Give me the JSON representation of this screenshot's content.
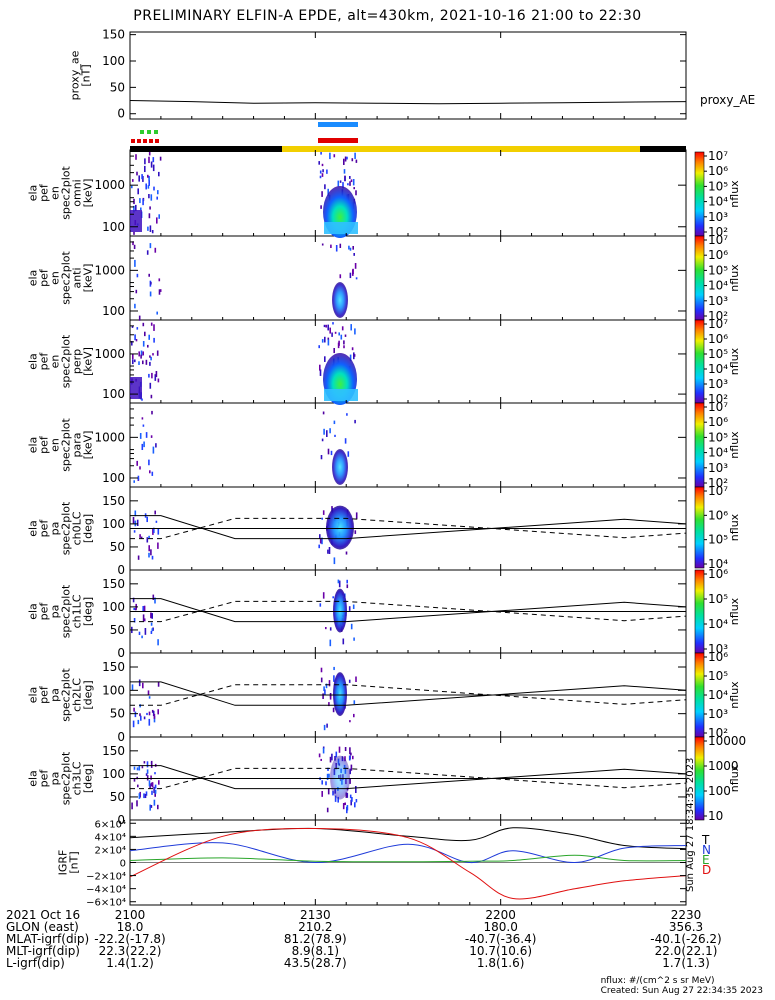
{
  "title": "PRELIMINARY ELFIN-A EPDE, alt=430km, 2021-10-16 21:00 to 22:30",
  "colors": {
    "frame": "#000000",
    "orbit_bar_sunlit": "#f2cf00",
    "orbit_bar_dark": "#000000",
    "science_zone_blue": "#1a8cff",
    "science_zone_red": "#e00000",
    "marker_green": "#2ecc2e",
    "marker_red": "#e00000",
    "bfield_T": "#000000",
    "bfield_N": "#1f3bd9",
    "bfield_E": "#2aa52a",
    "bfield_D": "#e01010"
  },
  "panels": {
    "proxy_ae": {
      "ylabel": [
        "proxy_ae",
        "[nT]"
      ],
      "yticks": [
        "150",
        "100",
        "50",
        "0"
      ],
      "legend": "proxy_AE"
    },
    "spec": [
      {
        "ylabel": [
          "ela",
          "pef",
          "en",
          "spec2plot",
          "omni",
          "[keV]"
        ],
        "yticks": [
          "1000",
          "100"
        ]
      },
      {
        "ylabel": [
          "ela",
          "pef",
          "en",
          "spec2plot",
          "anti",
          "[keV]"
        ],
        "yticks": [
          "1000",
          "100"
        ]
      },
      {
        "ylabel": [
          "ela",
          "pef",
          "en",
          "spec2plot",
          "perp",
          "[keV]"
        ],
        "yticks": [
          "1000",
          "100"
        ]
      },
      {
        "ylabel": [
          "ela",
          "pef",
          "en",
          "spec2plot",
          "para",
          "[keV]"
        ],
        "yticks": [
          "1000",
          "100"
        ]
      }
    ],
    "pa": [
      {
        "ylabel": [
          "ela",
          "pef",
          "pa",
          "spec2plot",
          "ch0LC",
          "[deg]"
        ],
        "yticks": [
          "150",
          "100",
          "50",
          "0"
        ]
      },
      {
        "ylabel": [
          "ela",
          "pef",
          "pa",
          "spec2plot",
          "ch1LC",
          "[deg]"
        ],
        "yticks": [
          "150",
          "100",
          "50",
          "0"
        ]
      },
      {
        "ylabel": [
          "ela",
          "pef",
          "pa",
          "spec2plot",
          "ch2LC",
          "[deg]"
        ],
        "yticks": [
          "150",
          "100",
          "50",
          "0"
        ]
      },
      {
        "ylabel": [
          "ela",
          "pef",
          "pa",
          "spec2plot",
          "ch3LC",
          "[deg]"
        ],
        "yticks": [
          "150",
          "100",
          "50",
          "0"
        ]
      }
    ],
    "bfield": {
      "ylabel": [
        "IGRF",
        "[nT]"
      ],
      "yticks": [
        "6×10⁴",
        "4×10⁴",
        "2×10⁴",
        "0",
        "−2×10⁴",
        "−4×10⁴",
        "−6×10⁴"
      ],
      "legend": [
        "T",
        "N",
        "E",
        "D"
      ],
      "side_note": "Sun Aug 27 18:34:35 2023"
    }
  },
  "colorbars": [
    {
      "unit": "nflux",
      "ticks": [
        "10⁷",
        "10⁶",
        "10⁵",
        "10⁴",
        "10³",
        "10²"
      ]
    },
    {
      "unit": "nflux",
      "ticks": [
        "10⁷",
        "10⁶",
        "10⁵",
        "10⁴",
        "10³",
        "10²"
      ]
    },
    {
      "unit": "nflux",
      "ticks": [
        "10⁷",
        "10⁶",
        "10⁵",
        "10⁴",
        "10³",
        "10²"
      ]
    },
    {
      "unit": "nflux",
      "ticks": [
        "10⁷",
        "10⁶",
        "10⁵",
        "10⁴",
        "10³",
        "10²"
      ]
    },
    {
      "unit": "nflux",
      "ticks": [
        "10⁷",
        "10⁶",
        "10⁵",
        "10⁴"
      ]
    },
    {
      "unit": "nflux",
      "ticks": [
        "10⁶",
        "10⁵",
        "10⁴",
        "10³"
      ]
    },
    {
      "unit": "nflux",
      "ticks": [
        "10⁶",
        "10⁵",
        "10⁴",
        "10³",
        "10²"
      ]
    },
    {
      "unit": "nflux",
      "ticks": [
        "10000",
        "1000",
        "100",
        "10"
      ]
    }
  ],
  "footer": {
    "rows": [
      {
        "label": "2021 Oct 16",
        "values": [
          "2100",
          "2130",
          "2200",
          "2230"
        ]
      },
      {
        "label": "GLON (east)",
        "values": [
          "18.0",
          "210.2",
          "180.0",
          "356.3"
        ]
      },
      {
        "label": "MLAT-igrf(dip)",
        "values": [
          "-22.2(-17.8)",
          "81.2(78.9)",
          "-40.7(-36.4)",
          "-40.1(-26.2)"
        ]
      },
      {
        "label": "MLT-igrf(dip)",
        "values": [
          "22.3(22.2)",
          "8.9(8.1)",
          "10.7(10.6)",
          "22.0(22.1)"
        ]
      },
      {
        "label": "L-igrf(dip)",
        "values": [
          "1.4(1.2)",
          "43.5(28.7)",
          "1.8(1.6)",
          "1.7(1.3)"
        ]
      }
    ],
    "note1": "nflux: #/(cm^2 s sr MeV)",
    "note2": "Created: Sun Aug 27 22:34:35 2023"
  },
  "chart_data": {
    "type": "line",
    "title": "PRELIMINARY ELFIN-A EPDE, alt=430km, 2021-10-16 21:00 to 22:30",
    "x_time_ticks": [
      "2100",
      "2130",
      "2200",
      "2230"
    ],
    "x_range": [
      "2021-10-16 21:00",
      "2021-10-16 22:30"
    ],
    "proxy_ae": {
      "ylabel": "proxy_ae [nT]",
      "ylim": [
        -10,
        155
      ],
      "time_min": [
        0,
        10,
        20,
        30,
        40,
        50,
        60,
        70,
        80,
        90
      ],
      "values": [
        25,
        23,
        20,
        21,
        20,
        19,
        20,
        21,
        22,
        23
      ]
    },
    "spectra": {
      "energy_range_keV": [
        60,
        7000
      ],
      "flux_range": [
        "1e2",
        "1e7"
      ],
      "active_intervals_min": [
        [
          0,
          5
        ],
        [
          31,
          36
        ]
      ]
    },
    "pitch_angle": {
      "ylim": [
        0,
        180
      ],
      "loss_cone_solid": [
        [
          0,
          118
        ],
        [
          5,
          118
        ],
        [
          17,
          68
        ],
        [
          35,
          68
        ],
        [
          80,
          110
        ],
        [
          90,
          100
        ]
      ],
      "antiloss_cone_dashed": [
        [
          0,
          68
        ],
        [
          5,
          68
        ],
        [
          17,
          112
        ],
        [
          35,
          112
        ],
        [
          80,
          70
        ],
        [
          90,
          80
        ]
      ],
      "ninety_line": 90
    },
    "igrf": {
      "ylim": [
        -65000,
        65000
      ],
      "series": [
        {
          "name": "T",
          "time_min": [
            0,
            15,
            30,
            45,
            55,
            62,
            72,
            80,
            90
          ],
          "values": [
            38000,
            46000,
            52000,
            40000,
            34000,
            53000,
            42000,
            26000,
            21000
          ]
        },
        {
          "name": "N",
          "time_min": [
            0,
            15,
            30,
            45,
            55,
            62,
            72,
            80,
            90
          ],
          "values": [
            18000,
            30000,
            0,
            28000,
            0,
            18000,
            0,
            22000,
            26000
          ]
        },
        {
          "name": "E",
          "time_min": [
            0,
            15,
            30,
            45,
            55,
            62,
            72,
            80,
            90
          ],
          "values": [
            3000,
            7000,
            2000,
            1000,
            2000,
            3000,
            11000,
            3000,
            3000
          ]
        },
        {
          "name": "D",
          "time_min": [
            0,
            15,
            30,
            45,
            55,
            62,
            72,
            80,
            90
          ],
          "values": [
            -22000,
            40000,
            52000,
            38000,
            -15000,
            -55000,
            -40000,
            -28000,
            -20000
          ]
        }
      ]
    }
  }
}
